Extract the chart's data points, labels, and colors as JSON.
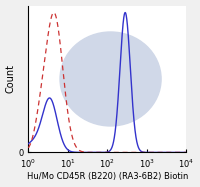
{
  "xlabel": "Hu/Mo CD45R (B220) (RA3-6B2) Biotin",
  "ylabel": "Count",
  "xlim_log": [
    0,
    4
  ],
  "ylim": [
    0,
    1.0
  ],
  "background_color": "#f0f0f0",
  "plot_bg_color": "#ffffff",
  "solid_color": "#3333cc",
  "dashed_color": "#cc3333",
  "watermark_color": "#d0d8e8",
  "title_fontsize": 7,
  "axis_fontsize": 7,
  "tick_fontsize": 6
}
